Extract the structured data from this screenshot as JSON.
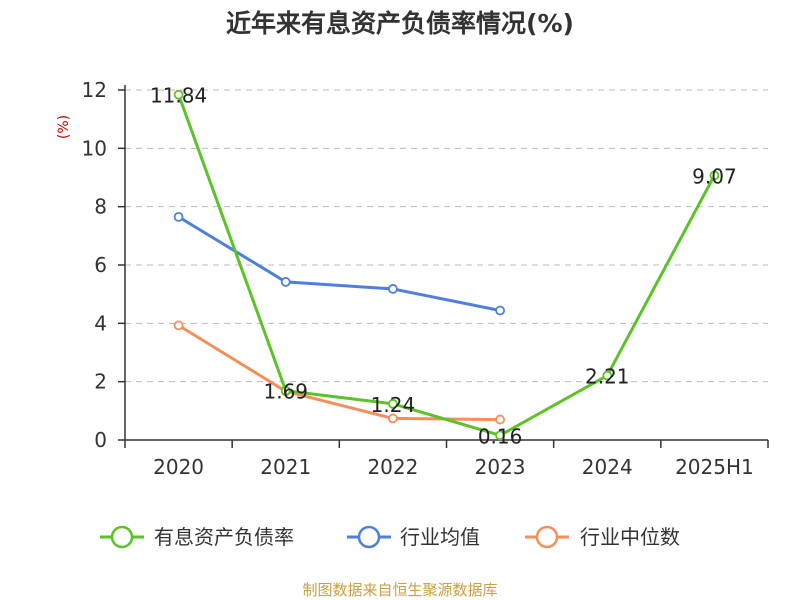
{
  "chart_data": {
    "type": "line",
    "title": "近年来有息资产负债率情况(%)",
    "ylabel": "(%)",
    "categories": [
      "2020",
      "2021",
      "2022",
      "2023",
      "2024",
      "2025H1"
    ],
    "ylim": [
      0,
      12
    ],
    "yticks": [
      0,
      2,
      4,
      6,
      8,
      10,
      12
    ],
    "grid": true,
    "legend_position": "bottom",
    "series": [
      {
        "name": "有息资产负债率",
        "color": "#5cc228",
        "values": [
          11.84,
          1.69,
          1.24,
          0.16,
          2.21,
          9.07
        ],
        "labels": [
          "11.84",
          "1.69",
          "1.24",
          "0.16",
          "2.21",
          "9.07"
        ]
      },
      {
        "name": "行业均值",
        "color": "#4e7fdc",
        "values": [
          7.65,
          5.42,
          5.18,
          4.44,
          null,
          null
        ]
      },
      {
        "name": "行业中位数",
        "color": "#f58f5a",
        "values": [
          3.93,
          1.67,
          0.74,
          0.7,
          null,
          null
        ]
      }
    ]
  },
  "source_note": "制图数据来自恒生聚源数据库"
}
